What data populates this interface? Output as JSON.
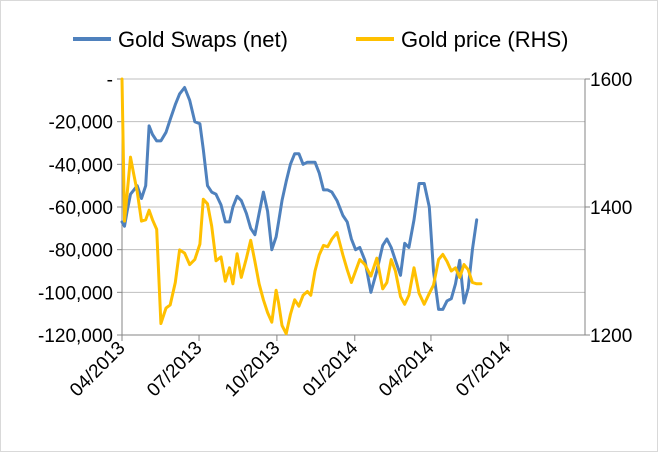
{
  "chart_data": {
    "type": "line",
    "title": "",
    "legend": {
      "position": "top",
      "entries": [
        "Gold Swaps (net)",
        "Gold price (RHS)"
      ]
    },
    "x_axis": {
      "type": "date",
      "range": [
        "2013-04-01",
        "2014-09-30"
      ],
      "tick_labels": [
        "04/2013",
        "07/2013",
        "10/2013",
        "01/2014",
        "04/2014",
        "07/2014"
      ],
      "tick_dates": [
        "2013-04-01",
        "2013-07-01",
        "2013-10-01",
        "2014-01-01",
        "2014-04-01",
        "2014-07-01"
      ]
    },
    "y_axis_left": {
      "range": [
        -120000,
        0
      ],
      "tick_values": [
        0,
        -20000,
        -40000,
        -60000,
        -80000,
        -100000,
        -120000
      ],
      "tick_labels": [
        "-",
        "-20,000",
        "-40,000",
        "-60,000",
        "-80,000",
        "-100,000",
        "-120,000"
      ],
      "grid": true
    },
    "y_axis_right": {
      "range": [
        1200,
        1600
      ],
      "tick_values": [
        1200,
        1400,
        1600
      ],
      "tick_labels": [
        "1200",
        "1400",
        "1600"
      ]
    },
    "series": [
      {
        "name": "Gold Swaps (net)",
        "axis": "left",
        "color": "#4f81bd",
        "x": [
          "2013-04-01",
          "2013-04-04",
          "2013-04-07",
          "2013-04-11",
          "2013-04-15",
          "2013-04-19",
          "2013-04-24",
          "2013-04-29",
          "2013-05-03",
          "2013-05-07",
          "2013-05-12",
          "2013-05-17",
          "2013-05-23",
          "2013-05-28",
          "2013-06-03",
          "2013-06-08",
          "2013-06-14",
          "2013-06-20",
          "2013-06-26",
          "2013-07-02",
          "2013-07-06",
          "2013-07-11",
          "2013-07-16",
          "2013-07-21",
          "2013-07-27",
          "2013-08-01",
          "2013-08-06",
          "2013-08-10",
          "2013-08-15",
          "2013-08-20",
          "2013-08-26",
          "2013-08-31",
          "2013-09-05",
          "2013-09-10",
          "2013-09-15",
          "2013-09-20",
          "2013-09-25",
          "2013-09-30",
          "2013-10-03",
          "2013-10-07",
          "2013-10-12",
          "2013-10-17",
          "2013-10-22",
          "2013-10-27",
          "2013-11-01",
          "2013-11-06",
          "2013-11-10",
          "2013-11-15",
          "2013-11-20",
          "2013-11-25",
          "2013-11-30",
          "2013-12-05",
          "2013-12-11",
          "2013-12-18",
          "2013-12-23",
          "2013-12-28",
          "2014-01-02",
          "2014-01-07",
          "2014-01-13",
          "2014-01-20",
          "2014-01-27",
          "2014-02-03",
          "2014-02-08",
          "2014-02-13",
          "2014-02-18",
          "2014-02-24",
          "2014-03-01",
          "2014-03-06",
          "2014-03-12",
          "2014-03-18",
          "2014-03-24",
          "2014-03-30",
          "2014-04-04",
          "2014-04-10",
          "2014-04-15",
          "2014-04-20",
          "2014-04-25",
          "2014-04-30",
          "2014-05-05",
          "2014-05-10",
          "2014-05-15",
          "2014-05-20",
          "2014-05-25",
          "2014-05-30",
          "2014-06-04",
          "2014-06-09",
          "2014-06-14",
          "2014-06-19",
          "2014-06-24",
          "2014-06-29",
          "2014-07-04",
          "2014-07-09",
          "2014-07-14",
          "2014-07-19",
          "2014-07-24",
          "2014-07-29",
          "2014-08-03",
          "2014-08-08",
          "2014-08-13",
          "2014-08-18",
          "2014-08-23",
          "2014-08-28",
          "2014-09-03",
          "2014-09-08",
          "2014-09-14",
          "2014-09-20"
        ],
        "values": [
          -67000,
          -69000,
          -62000,
          -54000,
          -52000,
          -50000,
          -56000,
          -50000,
          -22000,
          -26000,
          -29000,
          -29000,
          -25000,
          -19000,
          -12000,
          -7000,
          -4000,
          -10000,
          -20000,
          -21000,
          -33000,
          -50000,
          -53000,
          -54000,
          -59000,
          -67000,
          -67000,
          -60000,
          -55000,
          -57000,
          -63000,
          -70000,
          -73000,
          -63000,
          -53000,
          -62000,
          -80000,
          -74000,
          -67000,
          -57000,
          -48000,
          -40000,
          -35000,
          -35000,
          -40000,
          -39000,
          -39000,
          -39000,
          -44000,
          -52000,
          -52000,
          -53000,
          -57000,
          -64000,
          -67000,
          -75000,
          -80000,
          -79000,
          -85000,
          -100000,
          -90000,
          -78000,
          -75000,
          -79000,
          -85000,
          -92000,
          -77000,
          -79000,
          -66000,
          -49000,
          -49000,
          -60000,
          -90000,
          -108000,
          -108000,
          -104000,
          -103000,
          -96000,
          -85000,
          -105000,
          -98000,
          -80000,
          -66000,
          null,
          null,
          null,
          null,
          null,
          null,
          null,
          null,
          null,
          null,
          null,
          null,
          null,
          null,
          null,
          null,
          null,
          null,
          null,
          null,
          null,
          null,
          null
        ]
      },
      {
        "name": "Gold price (RHS)",
        "axis": "right",
        "color": "#ffc000",
        "x": [
          "2013-04-01",
          "2013-04-04",
          "2013-04-07",
          "2013-04-11",
          "2013-04-15",
          "2013-04-19",
          "2013-04-24",
          "2013-04-29",
          "2013-05-03",
          "2013-05-07",
          "2013-05-12",
          "2013-05-17",
          "2013-05-23",
          "2013-05-28",
          "2013-06-03",
          "2013-06-08",
          "2013-06-14",
          "2013-06-20",
          "2013-06-26",
          "2013-07-02",
          "2013-07-06",
          "2013-07-11",
          "2013-07-16",
          "2013-07-21",
          "2013-07-27",
          "2013-08-01",
          "2013-08-06",
          "2013-08-10",
          "2013-08-15",
          "2013-08-20",
          "2013-08-26",
          "2013-08-31",
          "2013-09-05",
          "2013-09-10",
          "2013-09-15",
          "2013-09-20",
          "2013-09-25",
          "2013-09-30",
          "2013-10-03",
          "2013-10-07",
          "2013-10-12",
          "2013-10-17",
          "2013-10-22",
          "2013-10-27",
          "2013-11-01",
          "2013-11-06",
          "2013-11-10",
          "2013-11-15",
          "2013-11-20",
          "2013-11-25",
          "2013-11-30",
          "2013-12-05",
          "2013-12-11",
          "2013-12-18",
          "2013-12-23",
          "2013-12-28",
          "2014-01-02",
          "2014-01-07",
          "2014-01-13",
          "2014-01-20",
          "2014-01-27",
          "2014-02-03",
          "2014-02-08",
          "2014-02-13",
          "2014-02-18",
          "2014-02-24",
          "2014-03-01",
          "2014-03-06",
          "2014-03-12",
          "2014-03-18",
          "2014-03-24",
          "2014-03-30",
          "2014-04-04",
          "2014-04-10",
          "2014-04-15",
          "2014-04-20",
          "2014-04-25",
          "2014-04-30",
          "2014-05-05",
          "2014-05-10",
          "2014-05-15",
          "2014-05-20",
          "2014-05-25",
          "2014-05-30",
          "2014-06-04",
          "2014-06-09",
          "2014-06-14",
          "2014-06-19",
          "2014-06-24",
          "2014-06-29",
          "2014-07-04",
          "2014-07-09",
          "2014-07-14",
          "2014-07-19",
          "2014-07-24",
          "2014-07-29",
          "2014-08-03",
          "2014-08-08",
          "2014-08-13",
          "2014-08-18",
          "2014-08-23",
          "2014-08-28",
          "2014-09-03",
          "2014-09-08",
          "2014-09-14",
          "2014-09-20"
        ],
        "values": [
          1600,
          1378,
          1420,
          1478,
          1450,
          1424,
          1378,
          1380,
          1395,
          1380,
          1365,
          1218,
          1242,
          1247,
          1282,
          1333,
          1328,
          1310,
          1318,
          1342,
          1412,
          1405,
          1370,
          1316,
          1322,
          1284,
          1305,
          1280,
          1327,
          1290,
          1320,
          1348,
          1315,
          1280,
          1255,
          1235,
          1220,
          1270,
          1250,
          1215,
          1202,
          1232,
          1255,
          1245,
          1262,
          1268,
          1262,
          1300,
          1325,
          1340,
          1338,
          1350,
          1360,
          1325,
          1302,
          1282,
          1300,
          1318,
          1310,
          1292,
          1320,
          1272,
          1282,
          1318,
          1300,
          1260,
          1248,
          1262,
          1305,
          1265,
          1248,
          1265,
          1278,
          1318,
          1326,
          1315,
          1300,
          1305,
          1290,
          1310,
          1302,
          1282,
          1280,
          1280,
          null,
          null,
          null,
          null,
          null,
          null,
          null,
          null,
          null,
          null,
          null,
          null,
          null,
          null,
          null,
          null,
          null,
          null,
          null,
          null,
          null,
          null
        ]
      }
    ]
  }
}
